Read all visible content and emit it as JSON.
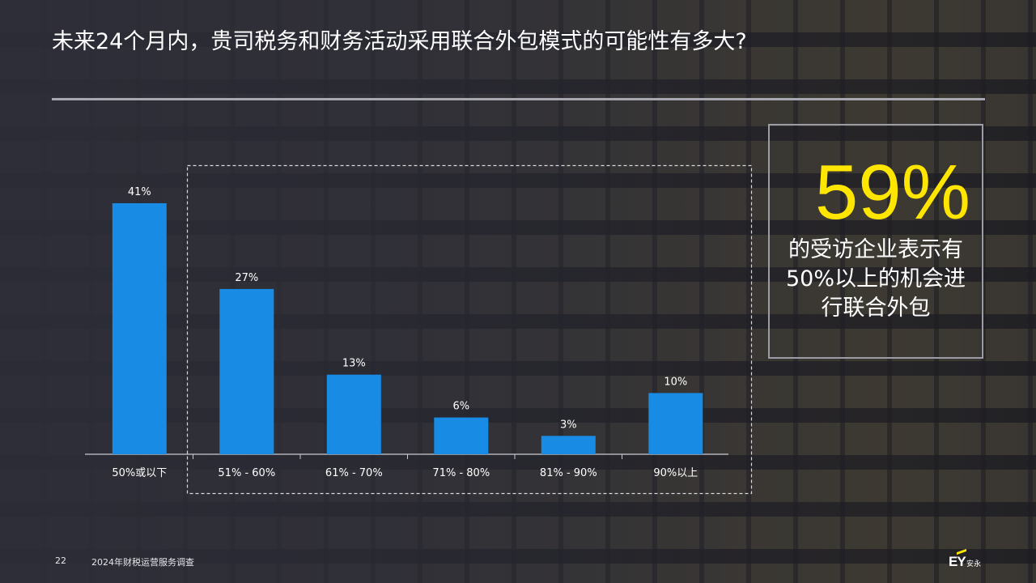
{
  "slide": {
    "title": "未来24个月内，贵司税务和财务活动采用联合外包模式的可能性有多大?",
    "page_number": "22",
    "footer_title": "2024年财税运营服务调查",
    "logo_text": "EY",
    "logo_cn": "安永"
  },
  "callout": {
    "value": "59%",
    "lines": [
      "的受访企业表示有",
      "50%以上的机会进",
      "行联合外包"
    ],
    "value_color": "#ffe600"
  },
  "chart_data": {
    "type": "bar",
    "categories": [
      "50%或以下",
      "51% - 60%",
      "61% - 70%",
      "71% - 80%",
      "81% - 90%",
      "90%以上"
    ],
    "values": [
      41,
      27,
      13,
      6,
      3,
      10
    ],
    "data_labels": [
      "41%",
      "27%",
      "13%",
      "6%",
      "3%",
      "10%"
    ],
    "ylim": [
      0,
      41
    ],
    "bar_color": "#188ce5",
    "highlight_group": [
      "51% - 60%",
      "61% - 70%",
      "71% - 80%",
      "81% - 90%",
      "90%以上"
    ],
    "grid": false,
    "legend": "none"
  }
}
